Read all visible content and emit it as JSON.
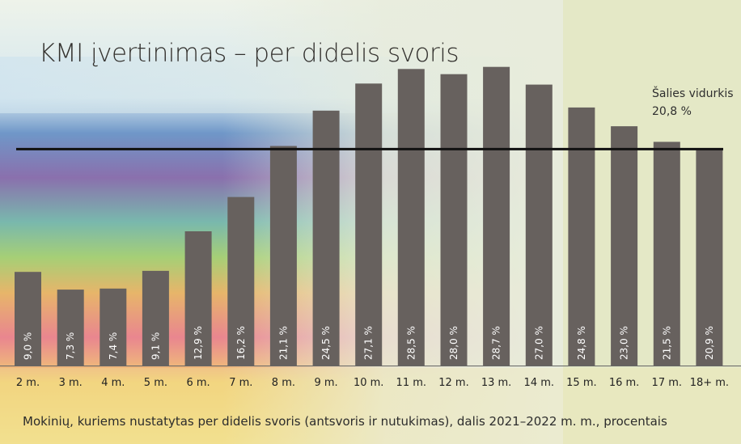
{
  "title": "KMI įvertinimas – per didelis svoris",
  "caption": "Mokinių, kuriems nustatytas per didelis svoris (antsvoris ir nutukimas), dalis 2021–2022 m. m., procentais",
  "colors": {
    "bar": "#67615e",
    "average_line": "#111111",
    "axis": "#666666"
  },
  "chart_data": {
    "type": "bar",
    "title": "KMI įvertinimas – per didelis svoris",
    "categories": [
      "2 m.",
      "3 m.",
      "4 m.",
      "5 m.",
      "6 m.",
      "7 m.",
      "8 m.",
      "9 m.",
      "10 m.",
      "11 m.",
      "12 m.",
      "13 m.",
      "14 m.",
      "15 m.",
      "16 m.",
      "17 m.",
      "18+ m."
    ],
    "values": [
      9.0,
      7.3,
      7.4,
      9.1,
      12.9,
      16.2,
      21.1,
      24.5,
      27.1,
      28.5,
      28.0,
      28.7,
      27.0,
      24.8,
      23.0,
      21.5,
      20.9
    ],
    "value_labels": [
      "9,0 %",
      "7,3 %",
      "7,4 %",
      "9,1 %",
      "12,9 %",
      "16,2 %",
      "21,1 %",
      "24,5 %",
      "27,1 %",
      "28,5 %",
      "28,0 %",
      "28,7 %",
      "27,0 %",
      "24,8 %",
      "23,0 %",
      "21,5 %",
      "20,9 %"
    ],
    "ylim": [
      0,
      30
    ],
    "grid": false,
    "reference_line": {
      "label": "Šalies vidurkis",
      "value": 20.8,
      "value_label": "20,8 %"
    }
  }
}
